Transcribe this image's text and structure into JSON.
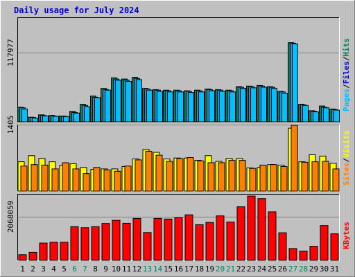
{
  "title": "Daily usage for July 2024",
  "colors": {
    "background": "#c0c0c0",
    "plot_background": "#c0c0c0",
    "title": "#0000cc",
    "hits": "#00805c",
    "files": "#00a0e8",
    "pages": "#00c0ff",
    "visits": "#ffff00",
    "sites": "#ff8000",
    "kbytes": "#ff0000",
    "weekend_label": "#00805c",
    "weekday_label": "#000000"
  },
  "chart_data": [
    {
      "type": "bar",
      "panel": "hits-files-pages",
      "ytick_label": "117977",
      "ytick_value": 117977,
      "legend": [
        {
          "text": "Pages",
          "color": "#00c0ff"
        },
        {
          "text": "/",
          "color": "#000000"
        },
        {
          "text": "Files",
          "color": "#0000cc"
        },
        {
          "text": "/",
          "color": "#000000"
        },
        {
          "text": "Hits",
          "color": "#00805c"
        }
      ],
      "categories": [
        "1",
        "2",
        "3",
        "4",
        "5",
        "6",
        "7",
        "8",
        "9",
        "10",
        "11",
        "12",
        "13",
        "14",
        "15",
        "16",
        "17",
        "18",
        "19",
        "20",
        "21",
        "22",
        "23",
        "24",
        "25",
        "26",
        "27",
        "28",
        "29",
        "30",
        "31"
      ],
      "series": [
        {
          "name": "Hits",
          "values": [
            25000,
            8000,
            12000,
            11000,
            10000,
            18000,
            30000,
            44000,
            57000,
            75000,
            73000,
            76000,
            57000,
            55000,
            54000,
            54000,
            53000,
            54000,
            56000,
            55000,
            54000,
            60000,
            61000,
            62000,
            60000,
            52000,
            135000,
            30000,
            19000,
            27000,
            22000
          ]
        },
        {
          "name": "Files",
          "values": [
            24000,
            7500,
            11000,
            10000,
            9500,
            16000,
            28000,
            42000,
            55000,
            73000,
            71000,
            74000,
            56000,
            54000,
            53000,
            53000,
            52000,
            53000,
            55000,
            54000,
            53000,
            59000,
            60000,
            61000,
            59000,
            51000,
            134000,
            29000,
            18000,
            25000,
            21000
          ]
        },
        {
          "name": "Pages",
          "values": [
            22000,
            6500,
            10000,
            9500,
            9000,
            15000,
            26000,
            41000,
            54000,
            71000,
            69000,
            72000,
            54000,
            52000,
            51000,
            51000,
            50000,
            51000,
            53000,
            52000,
            51000,
            57000,
            58000,
            59000,
            57000,
            49000,
            133000,
            28000,
            17000,
            24000,
            20000
          ]
        }
      ]
    },
    {
      "type": "bar",
      "panel": "visits-sites",
      "ytick_label": "1405",
      "ytick_value": 1405,
      "legend": [
        {
          "text": "Sites",
          "color": "#ff8000"
        },
        {
          "text": "/",
          "color": "#000000"
        },
        {
          "text": "Visits",
          "color": "#ffff00"
        }
      ],
      "categories": [
        "1",
        "2",
        "3",
        "4",
        "5",
        "6",
        "7",
        "8",
        "9",
        "10",
        "11",
        "12",
        "13",
        "14",
        "15",
        "16",
        "17",
        "18",
        "19",
        "20",
        "21",
        "22",
        "23",
        "24",
        "25",
        "26",
        "27",
        "28",
        "29",
        "30",
        "31"
      ],
      "series": [
        {
          "name": "Visits",
          "values": [
            620,
            750,
            690,
            620,
            540,
            580,
            500,
            460,
            470,
            470,
            520,
            680,
            880,
            820,
            680,
            700,
            700,
            650,
            750,
            630,
            690,
            690,
            490,
            500,
            560,
            550,
            1330,
            620,
            770,
            740,
            590
          ]
        },
        {
          "name": "Sites",
          "values": [
            530,
            560,
            550,
            470,
            600,
            470,
            370,
            500,
            450,
            420,
            530,
            660,
            840,
            760,
            630,
            690,
            710,
            640,
            600,
            600,
            650,
            650,
            480,
            550,
            560,
            520,
            1390,
            610,
            620,
            630,
            470
          ]
        }
      ]
    },
    {
      "type": "bar",
      "panel": "kbytes",
      "ytick_label": "2068059",
      "ytick_value": 2068059,
      "legend": [
        {
          "text": "KBytes",
          "color": "#ff0000"
        }
      ],
      "categories": [
        "1",
        "2",
        "3",
        "4",
        "5",
        "6",
        "7",
        "8",
        "9",
        "10",
        "11",
        "12",
        "13",
        "14",
        "15",
        "16",
        "17",
        "18",
        "19",
        "20",
        "21",
        "22",
        "23",
        "24",
        "25",
        "26",
        "27",
        "28",
        "29",
        "30",
        "31"
      ],
      "series": [
        {
          "name": "KBytes",
          "values": [
            270000,
            380000,
            820000,
            860000,
            860000,
            1600000,
            1550000,
            1600000,
            1750000,
            1900000,
            1760000,
            1990000,
            1320000,
            1990000,
            1960000,
            2020000,
            2160000,
            1690000,
            1800000,
            2110000,
            1820000,
            2540000,
            3050000,
            2930000,
            2300000,
            1310000,
            560000,
            440000,
            670000,
            1650000,
            1260000
          ]
        }
      ]
    }
  ],
  "xaxis": {
    "labels": [
      "1",
      "2",
      "3",
      "4",
      "5",
      "6",
      "7",
      "8",
      "9",
      "10",
      "11",
      "12",
      "13",
      "14",
      "15",
      "16",
      "17",
      "18",
      "19",
      "20",
      "21",
      "22",
      "23",
      "24",
      "25",
      "26",
      "27",
      "28",
      "29",
      "30",
      "31"
    ],
    "weekend_days": [
      "6",
      "7",
      "13",
      "14",
      "20",
      "21",
      "27",
      "28"
    ]
  }
}
